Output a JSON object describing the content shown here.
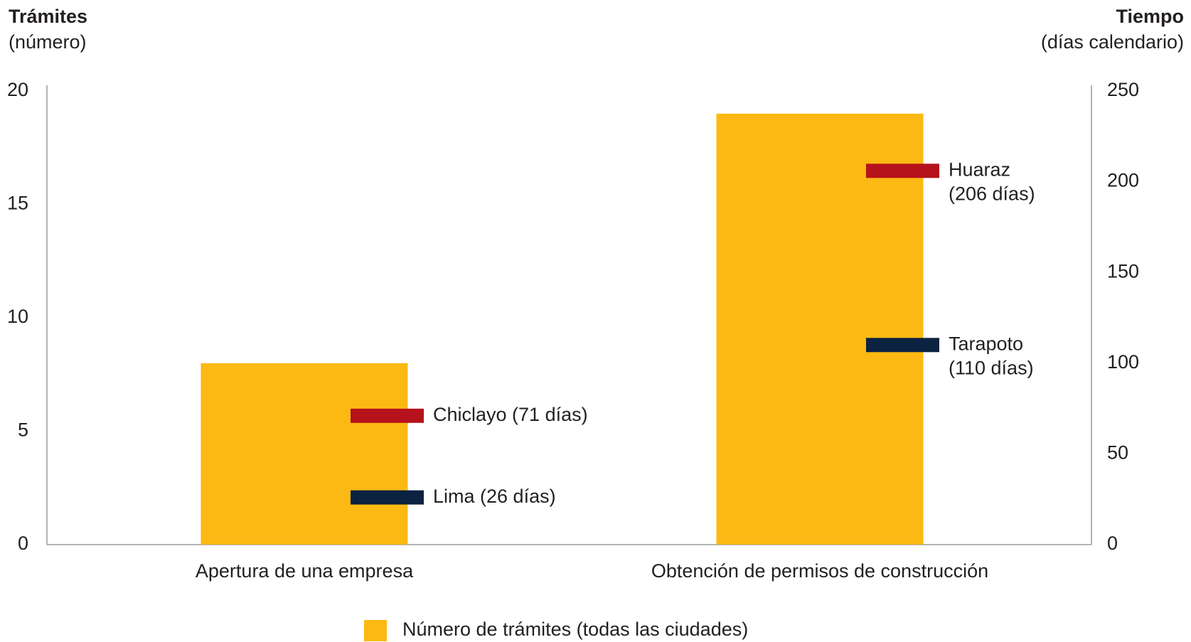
{
  "chart_data": {
    "type": "bar",
    "ylabel": [
      "Trámites",
      "(número)"
    ],
    "y2label": [
      "Tiempo",
      "(días calendario)"
    ],
    "categories": [
      "Apertura de una empresa",
      "Obtención de permisos de construcción"
    ],
    "series": [
      {
        "name": "Número de trámites (todas las ciudades)",
        "color": "#fdb913",
        "values": [
          8,
          19
        ]
      },
      {
        "type": "marker",
        "axis": "y2",
        "color": "#b5121b",
        "values": [
          71,
          206
        ],
        "value_labels": [
          [
            "Chiclayo (71 días)"
          ],
          [
            "Huaraz",
            "(206 días)"
          ]
        ]
      },
      {
        "type": "marker",
        "axis": "y2",
        "color": "#0b2240",
        "values": [
          26,
          110
        ],
        "value_labels": [
          [
            "Lima (26 días)"
          ],
          [
            "Tarapoto",
            "(110 días)"
          ]
        ]
      }
    ],
    "ylim": [
      0,
      20
    ],
    "yticks": [
      0,
      5,
      10,
      15,
      20
    ],
    "y2lim": [
      0,
      250
    ],
    "y2ticks": [
      0,
      50,
      100,
      150,
      200,
      250
    ],
    "legend": "bottom"
  }
}
